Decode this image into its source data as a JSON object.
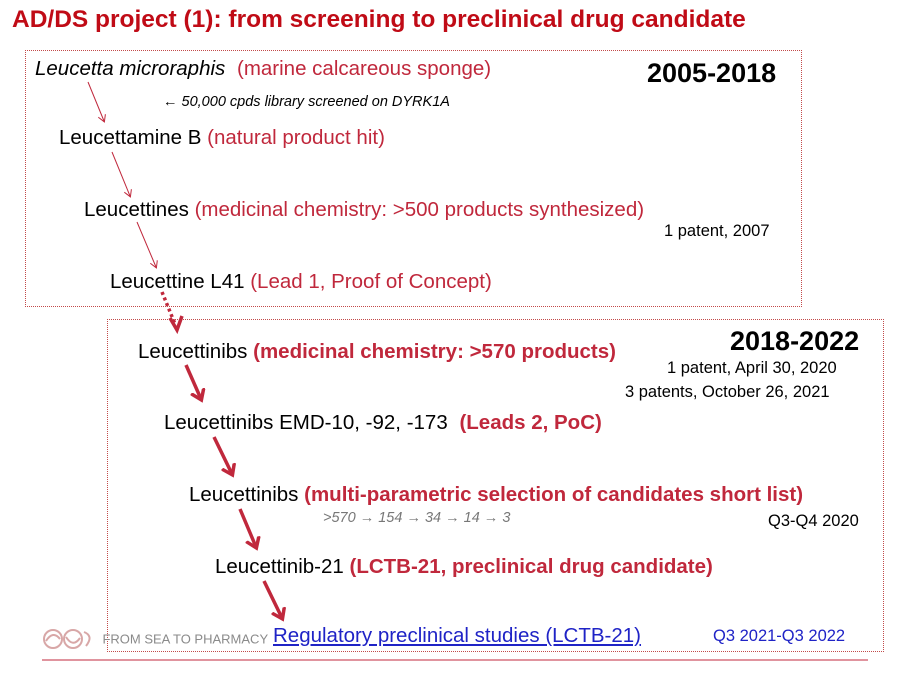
{
  "title": "AD/DS project (1): from screening to preclinical drug candidate",
  "phase1": {
    "period": "2005-2018",
    "source": {
      "name": "Leucetta microraphis",
      "desc": "(marine calcareous sponge)"
    },
    "library_note": "← 50,000 cpds library screened on DYRK1A",
    "hit": {
      "name": "Leucettamine B",
      "desc": "(natural product hit)"
    },
    "leucettines": {
      "name": "Leucettines",
      "desc": "(medicinal  chemistry: >500 products synthesized)"
    },
    "patent": "1 patent, 2007",
    "lead1": {
      "name": "Leucettine L41",
      "desc": "(Lead 1, Proof of Concept)"
    }
  },
  "phase2": {
    "period": "2018-2022",
    "leucettinibs": {
      "name": "Leucettinibs",
      "desc": "(medicinal  chemistry: >570 products)"
    },
    "patent_a": "1 patent, April 30, 2020",
    "patent_b": "3 patents, October 26, 2021",
    "leads2": {
      "name": "Leucettinibs EMD-10, -92, -173",
      "desc": "(Leads 2, PoC)"
    },
    "selection": {
      "name": "Leucettinibs",
      "desc": "(multi-parametric selection of candidates short list)"
    },
    "funnel": ">570 → 154 → 34 → 14 → 3",
    "selection_time": "Q3-Q4 2020",
    "candidate": {
      "name": "Leucettinib-21",
      "desc": "(LCTB-21, preclinical drug candidate)"
    },
    "regulatory": {
      "label": "Regulatory preclinical studies (LCTB-21)",
      "time": "Q3 2021-Q3 2022"
    }
  },
  "footer": {
    "logo_text": "FROM SEA TO PHARMACY"
  },
  "colors": {
    "title": "#c00b16",
    "accent": "#c0283c",
    "link": "#1f23c6",
    "box_border": "#c24a4a"
  },
  "icons": [
    "sea-to-pharmacy-logo-icon"
  ]
}
